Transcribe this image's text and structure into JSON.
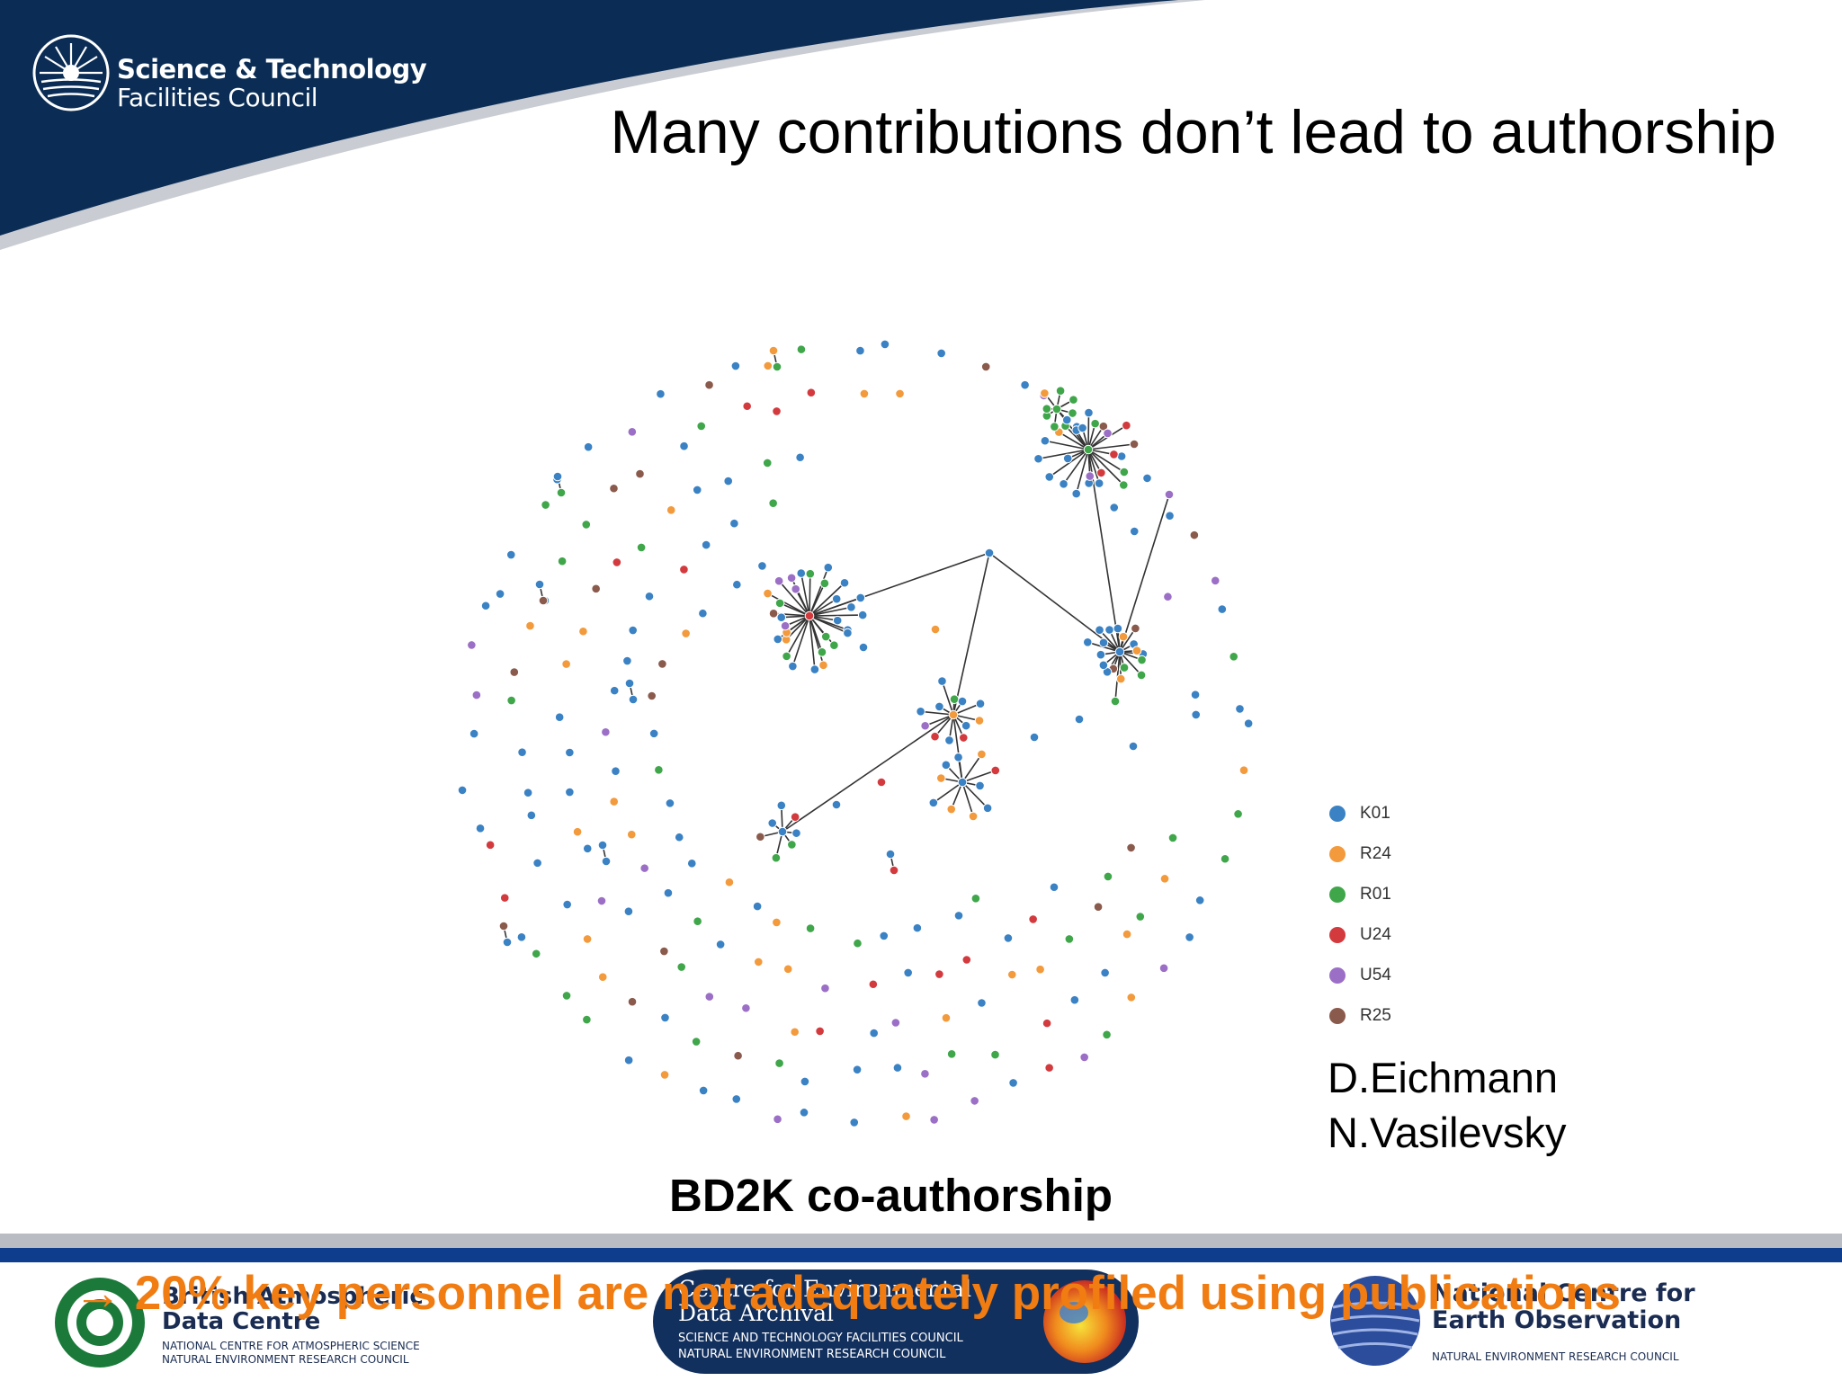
{
  "header": {
    "org_line1": "Science & Technology",
    "org_line2": "Facilities Council",
    "slide_title": "Many contributions don’t lead to authorship",
    "band_color": "#0b2d55"
  },
  "network": {
    "type": "co-authorship network",
    "colors": {
      "K01": "#3a82c4",
      "R24": "#f29a3c",
      "R01": "#3fa64a",
      "U24": "#d33a3e",
      "U54": "#9b6fc6",
      "R25": "#8a5a4c"
    }
  },
  "legend": {
    "items": [
      {
        "label": "K01",
        "color": "#3a82c4"
      },
      {
        "label": "R24",
        "color": "#f29a3c"
      },
      {
        "label": "R01",
        "color": "#3fa64a"
      },
      {
        "label": "U24",
        "color": "#d33a3e"
      },
      {
        "label": "U54",
        "color": "#9b6fc6"
      },
      {
        "label": "R25",
        "color": "#8a5a4c"
      }
    ]
  },
  "credits": {
    "line1": "D.Eichmann",
    "line2": "N.Vasilevsky"
  },
  "caption": "BD2K co-authorship",
  "footer": {
    "banner": "→ 20% key personnel are not adequately profiled using publications",
    "partners": [
      {
        "name_line1": "British Atmospheric",
        "name_line2": "Data Centre",
        "sub1": "NATIONAL CENTRE FOR ATMOSPHERIC SCIENCE",
        "sub2": "NATURAL ENVIRONMENT RESEARCH COUNCIL"
      },
      {
        "name_line1": "Centre for Environmental",
        "name_line2": "Data Archival",
        "sub1": "SCIENCE AND TECHNOLOGY FACILITIES COUNCIL",
        "sub2": "NATURAL ENVIRONMENT RESEARCH COUNCIL"
      },
      {
        "name_line1": "National Centre for",
        "name_line2": "Earth Observation",
        "sub1": "NATURAL ENVIRONMENT RESEARCH COUNCIL",
        "sub2": ""
      }
    ]
  }
}
